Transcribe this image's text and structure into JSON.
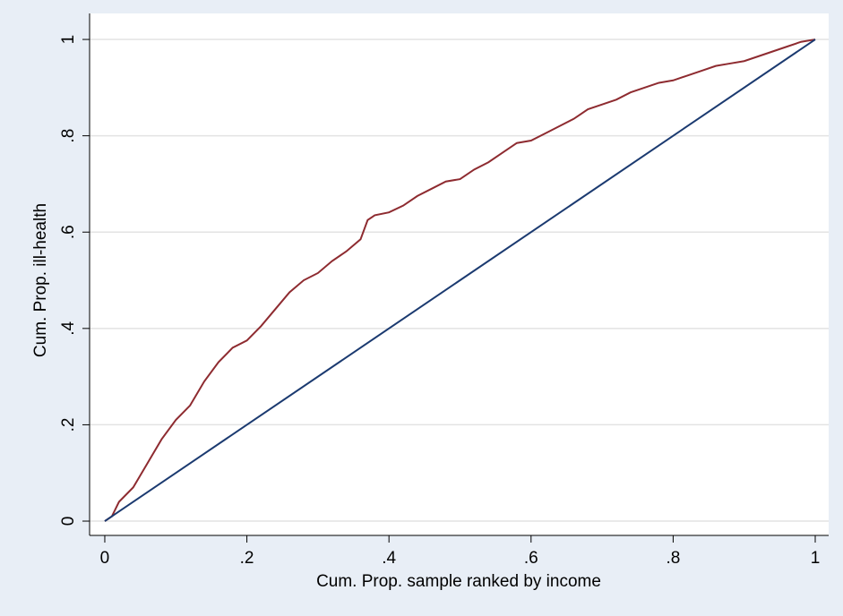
{
  "chart_data": {
    "type": "line",
    "xlabel": "Cum. Prop. sample ranked by income",
    "ylabel": "Cum. Prop. ill-health",
    "series": [
      {
        "color": "#8e2b30",
        "x": [
          0,
          0.01,
          0.02,
          0.04,
          0.06,
          0.08,
          0.1,
          0.12,
          0.14,
          0.16,
          0.18,
          0.2,
          0.22,
          0.24,
          0.26,
          0.28,
          0.3,
          0.32,
          0.34,
          0.36,
          0.37,
          0.38,
          0.4,
          0.42,
          0.44,
          0.46,
          0.48,
          0.5,
          0.52,
          0.54,
          0.56,
          0.58,
          0.6,
          0.62,
          0.64,
          0.66,
          0.68,
          0.7,
          0.72,
          0.74,
          0.76,
          0.78,
          0.8,
          0.82,
          0.84,
          0.86,
          0.88,
          0.9,
          0.92,
          0.94,
          0.96,
          0.98,
          1.0
        ],
        "values": [
          0,
          0.01,
          0.04,
          0.07,
          0.12,
          0.17,
          0.21,
          0.24,
          0.29,
          0.33,
          0.36,
          0.375,
          0.405,
          0.44,
          0.475,
          0.5,
          0.515,
          0.54,
          0.56,
          0.585,
          0.625,
          0.635,
          0.641,
          0.655,
          0.675,
          0.69,
          0.705,
          0.71,
          0.73,
          0.745,
          0.765,
          0.785,
          0.79,
          0.805,
          0.82,
          0.835,
          0.855,
          0.865,
          0.875,
          0.89,
          0.9,
          0.91,
          0.915,
          0.925,
          0.935,
          0.945,
          0.95,
          0.955,
          0.965,
          0.975,
          0.985,
          0.995,
          1.0
        ]
      },
      {
        "color": "#1b3a70",
        "x": [
          0,
          1
        ],
        "values": [
          0,
          1
        ]
      }
    ],
    "xlim": [
      -0.0214,
      1.0189
    ],
    "ylim": [
      -0.0297,
      1.054
    ],
    "xticks": [
      0,
      {
        "value": 0.2,
        "label": ".2"
      },
      {
        "value": 0.4,
        "label": ".4"
      },
      {
        "value": 0.6,
        "label": ".6"
      },
      {
        "value": 0.8,
        "label": ".8"
      },
      1
    ],
    "yticks": [
      0,
      {
        "value": 0.2,
        "label": ".2"
      },
      {
        "value": 0.4,
        "label": ".4"
      },
      {
        "value": 0.6,
        "label": ".6"
      },
      {
        "value": 0.8,
        "label": ".8"
      },
      1
    ],
    "grid": true
  }
}
